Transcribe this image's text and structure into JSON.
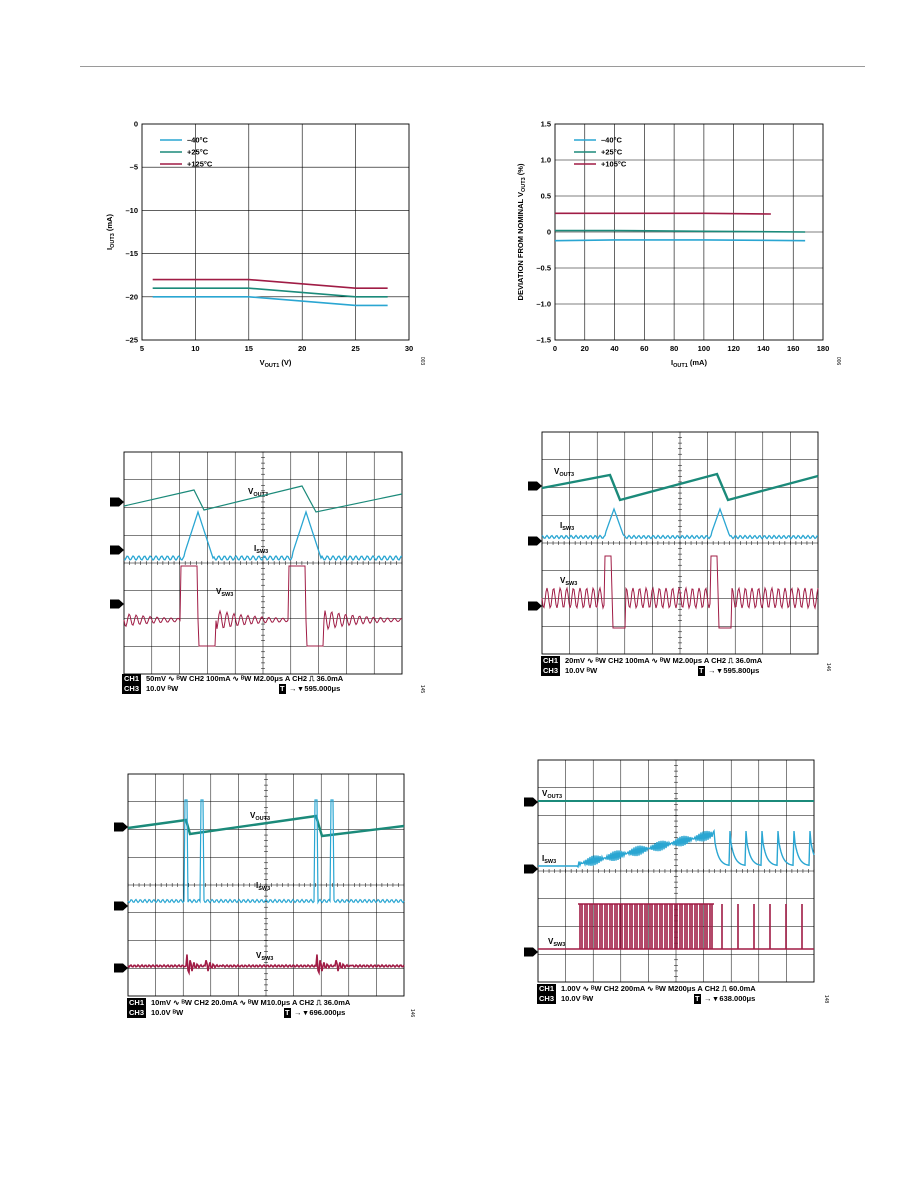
{
  "colors": {
    "teal": "#1b8a7a",
    "cyan": "#2aa6d2",
    "red": "#a01c45",
    "grid": "#000000",
    "rule": "#9a9a9a"
  },
  "chart_data": [
    {
      "type": "line",
      "xlabel": "V",
      "xlabel_sub": "OUT1",
      "xlabel_unit": " (V)",
      "ylabel": "I",
      "ylabel_sub": "OUT3",
      "ylabel_unit": " (mA)",
      "xlim": [
        5,
        30
      ],
      "ylim": [
        -25,
        0
      ],
      "xticks": [
        "5",
        "10",
        "15",
        "20",
        "25",
        "30"
      ],
      "yticks": [
        "0",
        "–5",
        "–10",
        "–15",
        "–20",
        "–25"
      ],
      "fignum": "003",
      "series": [
        {
          "name": "–40°C",
          "color": "#2aa6d2",
          "x": [
            6,
            15,
            25,
            28
          ],
          "y": [
            -20,
            -20,
            -21,
            -21
          ]
        },
        {
          "name": "+25°C",
          "color": "#1b8a7a",
          "x": [
            6,
            15,
            25,
            28
          ],
          "y": [
            -19,
            -19,
            -20,
            -20
          ]
        },
        {
          "name": "+125°C",
          "color": "#a01c45",
          "x": [
            6,
            15,
            25,
            28
          ],
          "y": [
            -18,
            -18,
            -19,
            -19
          ]
        }
      ]
    },
    {
      "type": "line",
      "xlabel": "I",
      "xlabel_sub": "OUT1",
      "xlabel_unit": " (mA)",
      "ylabel": "DEVIATION FROM NOMINAL V",
      "ylabel_sub": "OUT3",
      "ylabel_unit": " (%)",
      "xlim": [
        0,
        180
      ],
      "ylim": [
        -1.5,
        1.5
      ],
      "xticks": [
        "0",
        "20",
        "40",
        "60",
        "80",
        "100",
        "120",
        "140",
        "160",
        "180"
      ],
      "yticks": [
        "1.5",
        "1.0",
        "0.5",
        "0",
        "–0.5",
        "–1.0",
        "–1.5"
      ],
      "fignum": "006",
      "series": [
        {
          "name": "–40°C",
          "color": "#2aa6d2",
          "x": [
            0,
            40,
            100,
            168
          ],
          "y": [
            -0.12,
            -0.11,
            -0.11,
            -0.12
          ]
        },
        {
          "name": "+25°C",
          "color": "#1b8a7a",
          "x": [
            0,
            40,
            100,
            168
          ],
          "y": [
            0.02,
            0.02,
            0.01,
            0.0
          ]
        },
        {
          "name": "+105°C",
          "color": "#a01c45",
          "x": [
            0,
            40,
            100,
            145
          ],
          "y": [
            0.26,
            0.26,
            0.26,
            0.25
          ]
        }
      ]
    }
  ],
  "scopes": [
    {
      "labels": [
        "V",
        "OUT3",
        "I",
        "SW3",
        "V",
        "SW3"
      ],
      "markers": [
        "1",
        "2",
        "3"
      ],
      "footer": {
        "ch1": "CH1",
        "line1": "50mV ∿ ᴮW   CH2 100mA  ∿ ᴮW  M2.00μs      A  CH2 ⎍ 36.0mA",
        "ch3": "CH3",
        "line2": "10.0V ᴮW",
        "t": "T",
        "trig": "→ ▾ 595.000μs"
      },
      "fignum": "145"
    },
    {
      "labels": [
        "V",
        "OUT3",
        "I",
        "SW3",
        "V",
        "SW3"
      ],
      "markers": [
        "1",
        "2",
        "3"
      ],
      "footer": {
        "ch1": "CH1",
        "line1": "20mV ∿ ᴮW   CH2 100mA  ∿ ᴮW  M2.00μs   A  CH2 ⎍ 36.0mA",
        "ch3": "CH3",
        "line2": "10.0V ᴮW",
        "t": "T",
        "trig": "→ ▾ 595.800μs"
      },
      "fignum": "146"
    },
    {
      "labels": [
        "V",
        "OUT3",
        "I",
        "SW3",
        "V",
        "SW3"
      ],
      "markers": [
        "1",
        "2",
        "3"
      ],
      "footer": {
        "ch1": "CH1",
        "line1": "10mV ∿ ᴮW   CH2 20.0mA ∿ ᴮW  M10.0μs   A  CH2 ⎍ 36.0mA",
        "ch3": "CH3",
        "line2": "10.0V ᴮW",
        "t": "T",
        "trig": "→ ▾ 696.000μs"
      },
      "fignum": "146"
    },
    {
      "labels": [
        "V",
        "OUT3",
        "I",
        "SW3",
        "V",
        "SW3"
      ],
      "markers": [
        "1",
        "2",
        "3"
      ],
      "footer": {
        "ch1": "CH1",
        "line1": "1.00V ∿ ᴮW   CH2 200mA  ∿ ᴮW  M200μs      A  CH2 ⎍ 60.0mA",
        "ch3": "CH3",
        "line2": "10.0V ᴮW",
        "t": "T",
        "trig": "→ ▾ 638.000μs"
      },
      "fignum": "148"
    }
  ]
}
